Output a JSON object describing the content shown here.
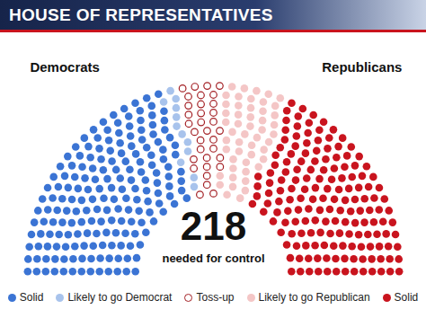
{
  "chart_data": {
    "type": "parliament",
    "title": "HOUSE OF REPRESENTATIVES",
    "sides": [
      "Democrats",
      "Republicans"
    ],
    "majority": {
      "value": 218,
      "label": "needed for control"
    },
    "series": [
      {
        "name": "Solid",
        "color": "#3b74d4",
        "marker": "filled",
        "values": [
          180
        ]
      },
      {
        "name": "Likely to go Democrat",
        "color": "#a8c3ec",
        "marker": "filled",
        "values": [
          12
        ]
      },
      {
        "name": "Toss-up",
        "color": "#a31f24",
        "marker": "hollow",
        "values": [
          33
        ]
      },
      {
        "name": "Likely to go Republican",
        "color": "#f4c6c6",
        "marker": "filled",
        "values": [
          50
        ]
      },
      {
        "name": "Solid",
        "color": "#c9141e",
        "marker": "filled",
        "values": [
          160
        ]
      }
    ],
    "legend": "bottom"
  }
}
